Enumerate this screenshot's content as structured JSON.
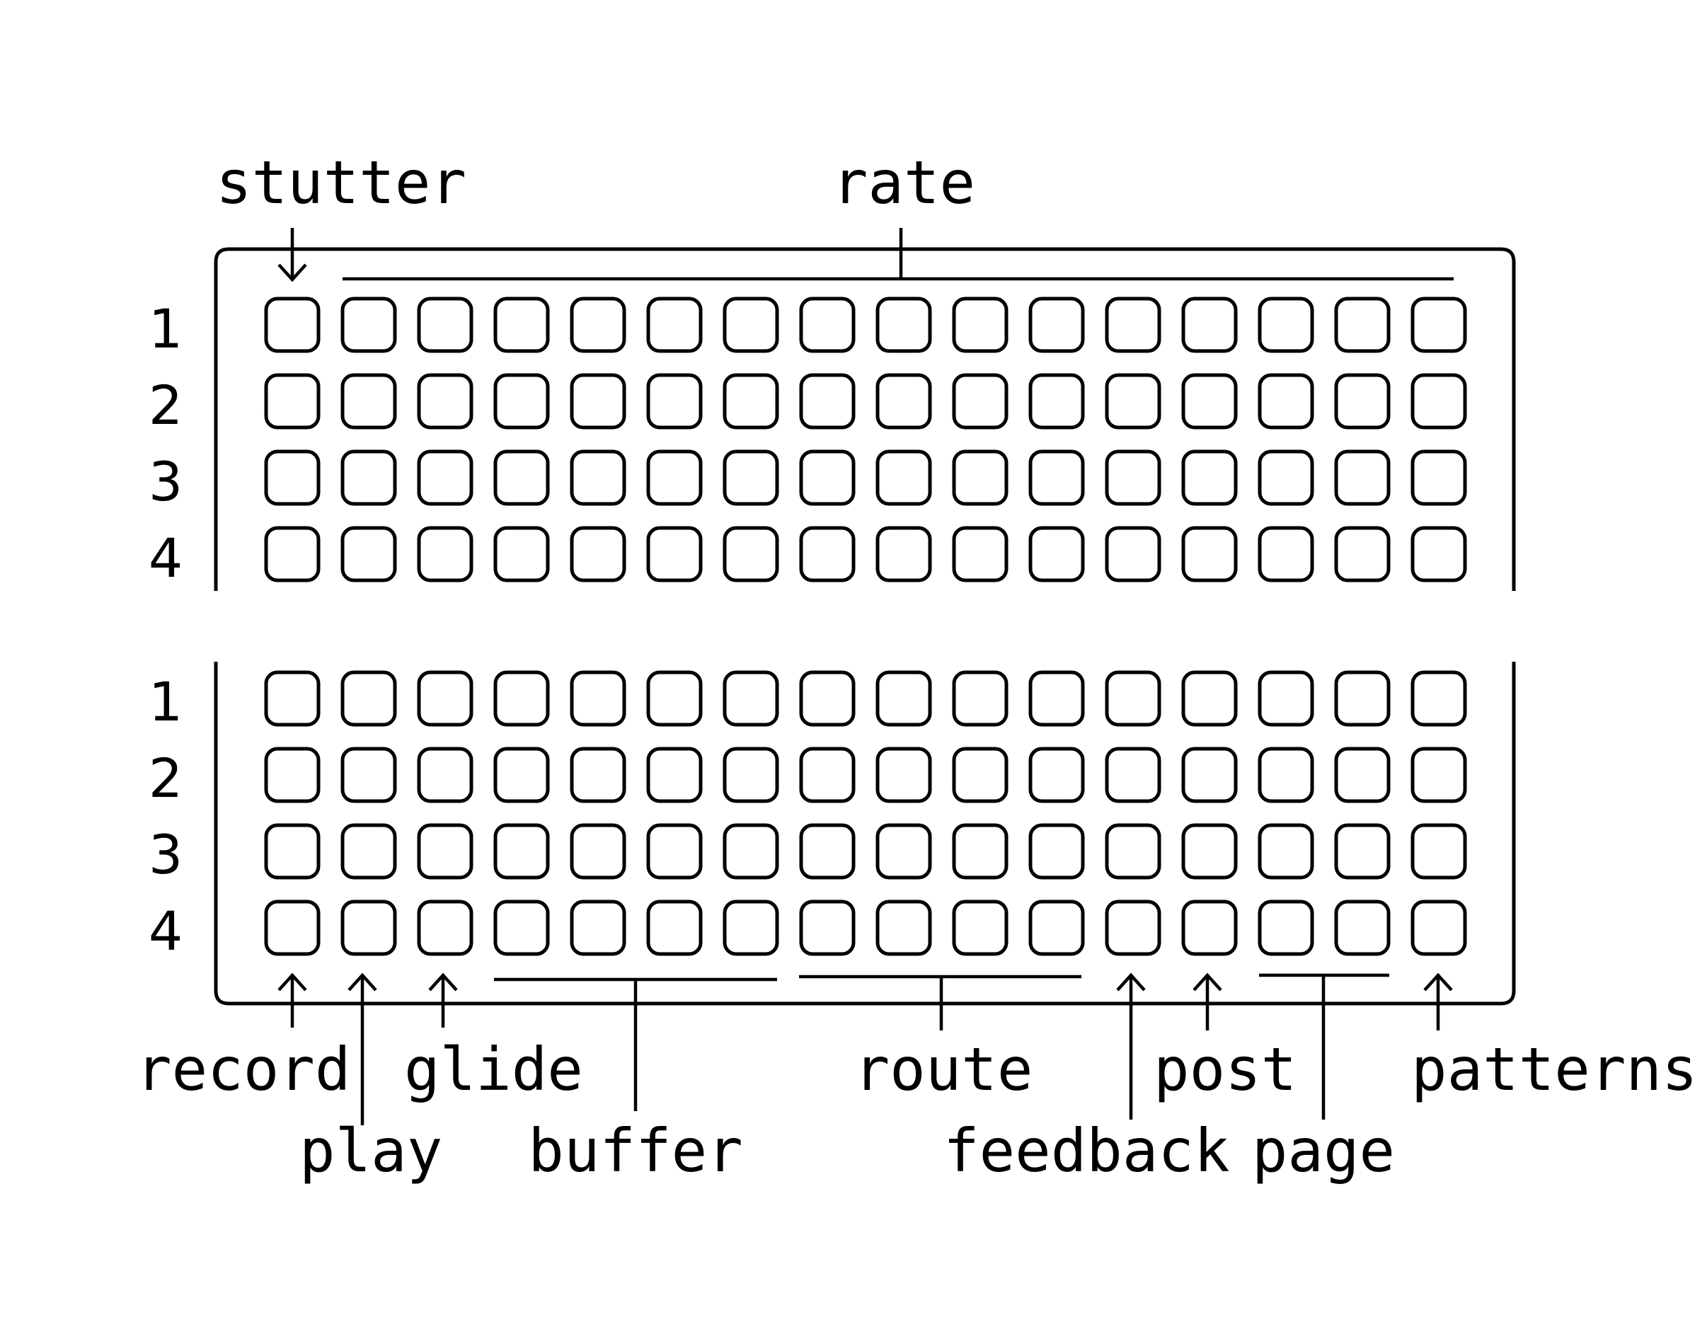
{
  "top_grid": {
    "row_labels": [
      "1",
      "2",
      "3",
      "4"
    ],
    "columns": 16,
    "labels": {
      "stutter": "stutter",
      "rate": "rate"
    }
  },
  "bottom_grid": {
    "row_labels": [
      "1",
      "2",
      "3",
      "4"
    ],
    "columns": 16,
    "labels": {
      "record": "record",
      "play": "play",
      "glide": "glide",
      "buffer": "buffer",
      "route": "route",
      "feedback": "feedback",
      "post": "post",
      "page": "page",
      "patterns": "patterns"
    }
  },
  "colors": {
    "ink": "#000000",
    "background": "#ffffff"
  }
}
